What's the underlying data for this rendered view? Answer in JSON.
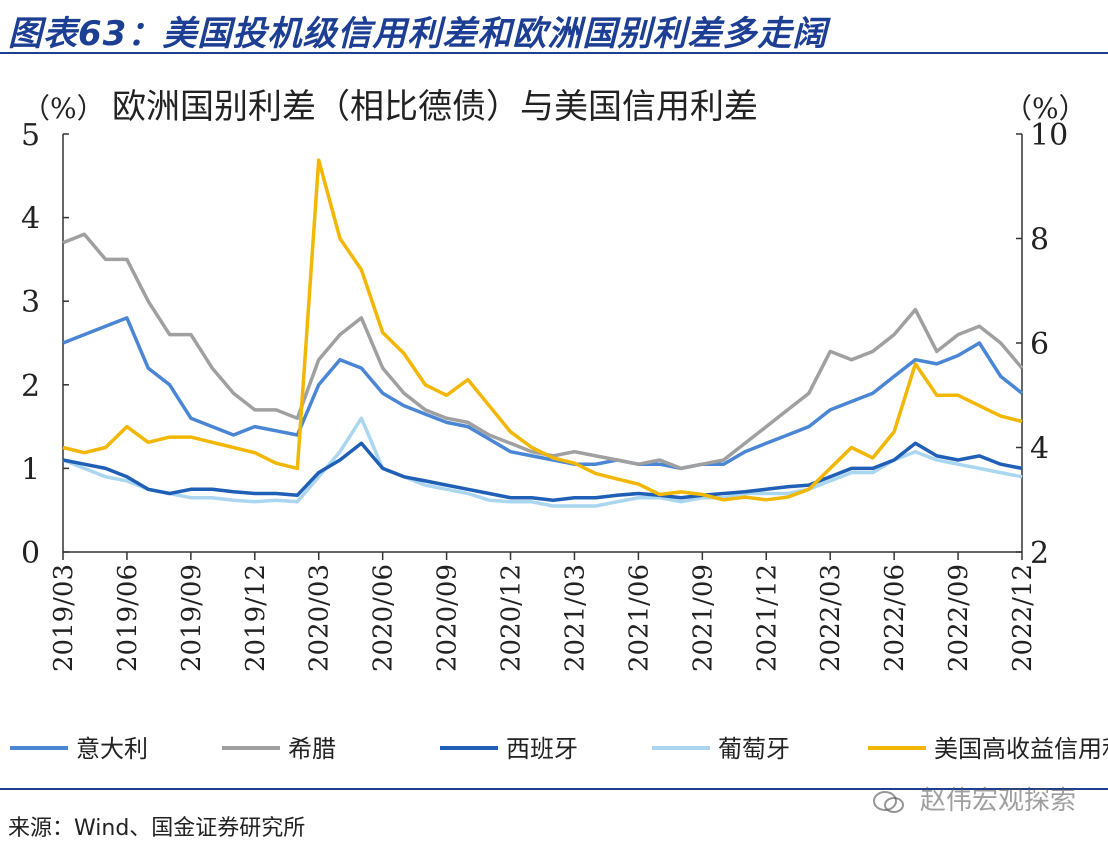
{
  "figure": {
    "title": "图表63：美国投机级信用利差和欧洲国别利差多走阔",
    "source": "来源：Wind、国金证券研究所",
    "watermark": "赵伟宏观探索"
  },
  "colors": {
    "italy": "#4a86d4",
    "greece": "#a0a0a0",
    "spain": "#1f5fb5",
    "portugal": "#aad6f0",
    "us_hy": "#f2b705",
    "title_blue": "#1c3f94"
  },
  "chart_data": {
    "type": "line",
    "title": "欧洲国别利差（相比德债）与美国信用利差",
    "left_unit": "（%）",
    "right_unit": "（%）",
    "ylim": [
      0,
      5
    ],
    "y2lim": [
      2,
      10
    ],
    "yticks": [
      "0",
      "1",
      "2",
      "3",
      "4",
      "5"
    ],
    "y2ticks": [
      "2",
      "4",
      "6",
      "8",
      "10"
    ],
    "xticks": [
      "2019/03",
      "2019/06",
      "2019/09",
      "2019/12",
      "2020/03",
      "2020/06",
      "2020/09",
      "2020/12",
      "2021/03",
      "2021/06",
      "2021/09",
      "2021/12",
      "2022/03",
      "2022/06",
      "2022/09",
      "2022/12"
    ],
    "x": [
      "2019/03",
      "2019/04",
      "2019/05",
      "2019/06",
      "2019/07",
      "2019/08",
      "2019/09",
      "2019/10",
      "2019/11",
      "2019/12",
      "2020/01",
      "2020/02",
      "2020/03",
      "2020/04",
      "2020/05",
      "2020/06",
      "2020/07",
      "2020/08",
      "2020/09",
      "2020/10",
      "2020/11",
      "2020/12",
      "2021/01",
      "2021/02",
      "2021/03",
      "2021/04",
      "2021/05",
      "2021/06",
      "2021/07",
      "2021/08",
      "2021/09",
      "2021/10",
      "2021/11",
      "2021/12",
      "2022/01",
      "2022/02",
      "2022/03",
      "2022/04",
      "2022/05",
      "2022/06",
      "2022/07",
      "2022/08",
      "2022/09",
      "2022/10",
      "2022/11",
      "2022/12"
    ],
    "series": [
      {
        "name": "意大利",
        "axis": "left",
        "color_key": "italy",
        "values": [
          2.5,
          2.6,
          2.7,
          2.8,
          2.2,
          2.0,
          1.6,
          1.5,
          1.4,
          1.5,
          1.45,
          1.4,
          2.0,
          2.3,
          2.2,
          1.9,
          1.75,
          1.65,
          1.55,
          1.5,
          1.35,
          1.2,
          1.15,
          1.1,
          1.05,
          1.05,
          1.1,
          1.05,
          1.05,
          1.0,
          1.05,
          1.05,
          1.2,
          1.3,
          1.4,
          1.5,
          1.7,
          1.8,
          1.9,
          2.1,
          2.3,
          2.25,
          2.35,
          2.5,
          2.1,
          1.9
        ]
      },
      {
        "name": "希腊",
        "axis": "left",
        "color_key": "greece",
        "values": [
          3.7,
          3.8,
          3.5,
          3.5,
          3.0,
          2.6,
          2.6,
          2.2,
          1.9,
          1.7,
          1.7,
          1.6,
          2.3,
          2.6,
          2.8,
          2.2,
          1.9,
          1.7,
          1.6,
          1.55,
          1.4,
          1.3,
          1.2,
          1.15,
          1.2,
          1.15,
          1.1,
          1.05,
          1.1,
          1.0,
          1.05,
          1.1,
          1.3,
          1.5,
          1.7,
          1.9,
          2.4,
          2.3,
          2.4,
          2.6,
          2.9,
          2.4,
          2.6,
          2.7,
          2.5,
          2.2
        ]
      },
      {
        "name": "西班牙",
        "axis": "left",
        "color_key": "spain",
        "values": [
          1.1,
          1.05,
          1.0,
          0.9,
          0.75,
          0.7,
          0.75,
          0.75,
          0.72,
          0.7,
          0.7,
          0.68,
          0.95,
          1.1,
          1.3,
          1.0,
          0.9,
          0.85,
          0.8,
          0.75,
          0.7,
          0.65,
          0.65,
          0.62,
          0.65,
          0.65,
          0.68,
          0.7,
          0.68,
          0.65,
          0.68,
          0.7,
          0.72,
          0.75,
          0.78,
          0.8,
          0.9,
          1.0,
          1.0,
          1.1,
          1.3,
          1.15,
          1.1,
          1.15,
          1.05,
          1.0
        ]
      },
      {
        "name": "葡萄牙",
        "axis": "left",
        "color_key": "portugal",
        "values": [
          1.1,
          1.0,
          0.9,
          0.85,
          0.75,
          0.7,
          0.65,
          0.65,
          0.62,
          0.6,
          0.62,
          0.6,
          0.9,
          1.2,
          1.6,
          1.0,
          0.9,
          0.8,
          0.75,
          0.7,
          0.62,
          0.6,
          0.6,
          0.55,
          0.55,
          0.55,
          0.6,
          0.65,
          0.65,
          0.6,
          0.65,
          0.65,
          0.7,
          0.7,
          0.7,
          0.75,
          0.85,
          0.95,
          0.95,
          1.1,
          1.2,
          1.1,
          1.05,
          1.0,
          0.95,
          0.9
        ]
      },
      {
        "name": "美国高收益信用利差（右轴）",
        "axis": "right",
        "color_key": "us_hy",
        "values": [
          4.0,
          3.9,
          4.0,
          4.4,
          4.1,
          4.2,
          4.2,
          4.1,
          4.0,
          3.9,
          3.7,
          3.6,
          9.5,
          8.0,
          7.4,
          6.2,
          5.8,
          5.2,
          5.0,
          5.3,
          4.8,
          4.3,
          4.0,
          3.8,
          3.7,
          3.5,
          3.4,
          3.3,
          3.1,
          3.15,
          3.1,
          3.0,
          3.05,
          3.0,
          3.05,
          3.2,
          3.6,
          4.0,
          3.8,
          4.3,
          5.6,
          5.0,
          5.0,
          4.8,
          4.6,
          4.5
        ]
      }
    ],
    "legend_position": "bottom",
    "grid": false
  }
}
